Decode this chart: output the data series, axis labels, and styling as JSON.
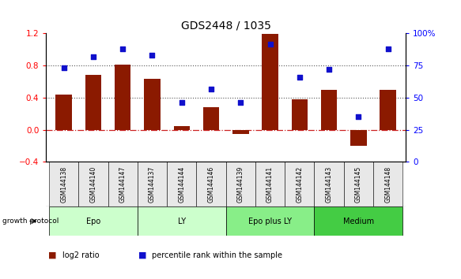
{
  "title": "GDS2448 / 1035",
  "samples": [
    "GSM144138",
    "GSM144140",
    "GSM144147",
    "GSM144137",
    "GSM144144",
    "GSM144146",
    "GSM144139",
    "GSM144141",
    "GSM144142",
    "GSM144143",
    "GSM144145",
    "GSM144148"
  ],
  "log2_ratio": [
    0.44,
    0.68,
    0.81,
    0.63,
    0.05,
    0.28,
    -0.05,
    1.19,
    0.38,
    0.5,
    -0.2,
    0.5
  ],
  "percentile_rank": [
    73,
    82,
    88,
    83,
    46,
    57,
    46,
    92,
    66,
    72,
    35,
    88
  ],
  "bar_color": "#8B1A00",
  "dot_color": "#1010CC",
  "hline0_color": "#CC2222",
  "dotline_color": "#555555",
  "ylim": [
    -0.4,
    1.2
  ],
  "ylim_right": [
    0,
    100
  ],
  "yticks_left": [
    -0.4,
    0.0,
    0.4,
    0.8,
    1.2
  ],
  "yticks_right": [
    0,
    25,
    50,
    75,
    100
  ],
  "hlines": [
    0.4,
    0.8
  ],
  "groups": [
    {
      "label": "Epo",
      "start": 0,
      "end": 3,
      "color": "#ccffcc"
    },
    {
      "label": "LY",
      "start": 3,
      "end": 6,
      "color": "#ccffcc"
    },
    {
      "label": "Epo plus LY",
      "start": 6,
      "end": 9,
      "color": "#88ee88"
    },
    {
      "label": "Medium",
      "start": 9,
      "end": 12,
      "color": "#44cc44"
    }
  ],
  "group_protocol_label": "growth protocol",
  "legend_bar_label": "log2 ratio",
  "legend_dot_label": "percentile rank within the sample"
}
